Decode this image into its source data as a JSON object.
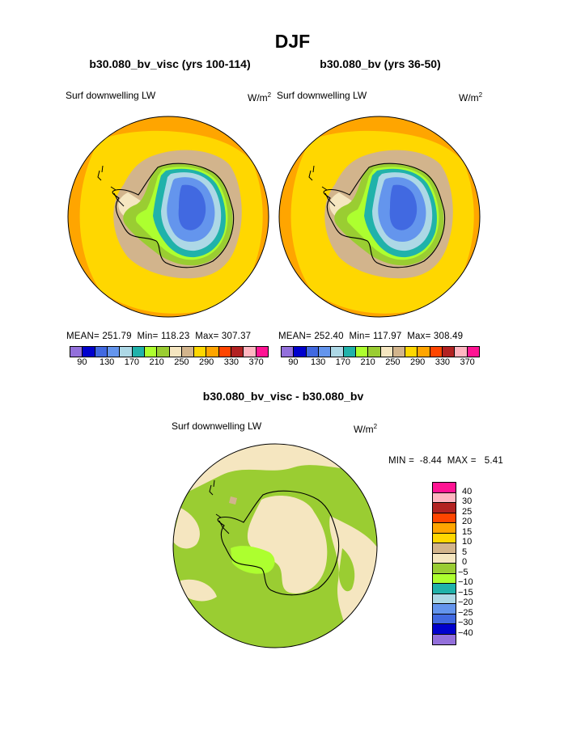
{
  "title": "DJF",
  "panels": [
    {
      "title": "b30.080_bv_visc (yrs 100-114)",
      "field": "Surf downwelling LW",
      "units_base": "W/m",
      "units_sup": "2",
      "stats_text": "MEAN= 251.79  Min= 118.23  Max= 307.37"
    },
    {
      "title": "b30.080_bv (yrs 36-50)",
      "field": "Surf downwelling LW",
      "units_base": "W/m",
      "units_sup": "2",
      "stats_text": "MEAN= 252.40  Min= 117.97  Max= 308.49"
    },
    {
      "title": "b30.080_bv_visc - b30.080_bv",
      "field": "Surf downwelling LW",
      "units_base": "W/m",
      "units_sup": "2",
      "stats_text": "MIN =  -8.44  MAX =   5.41"
    }
  ],
  "colors": {
    "abs_scale": [
      "#9370db",
      "#0000cd",
      "#4169e1",
      "#6495ed",
      "#add8e6",
      "#20b2aa",
      "#adff2f",
      "#9acd32",
      "#f5e6c0",
      "#d2b48c",
      "#ffd700",
      "#ffa500",
      "#ff4500",
      "#b22222",
      "#ffb6c1",
      "#ff1493"
    ],
    "diff_scale": [
      "#9370db",
      "#0000cd",
      "#4169e1",
      "#6495ed",
      "#add8e6",
      "#20b2aa",
      "#adff2f",
      "#9acd32",
      "#f5e6c0",
      "#d2b48c",
      "#ffd700",
      "#ffa500",
      "#ff4500",
      "#b22222",
      "#ffb6c1",
      "#ff1493"
    ]
  },
  "chart_data": [
    {
      "type": "heatmap",
      "projection": "south polar stereographic",
      "title": "b30.080_bv_visc (yrs 100-114)",
      "field": "Surf downwelling LW",
      "units": "W/m2",
      "mean": 251.79,
      "min": 118.23,
      "max": 307.37,
      "contour_levels": [
        90,
        110,
        130,
        150,
        170,
        190,
        210,
        230,
        250,
        270,
        290,
        310,
        330,
        350,
        370
      ],
      "colorbar_tick_labels": [
        "90",
        "130",
        "170",
        "210",
        "250",
        "290",
        "330",
        "370"
      ]
    },
    {
      "type": "heatmap",
      "projection": "south polar stereographic",
      "title": "b30.080_bv (yrs 36-50)",
      "field": "Surf downwelling LW",
      "units": "W/m2",
      "mean": 252.4,
      "min": 117.97,
      "max": 308.49,
      "contour_levels": [
        90,
        110,
        130,
        150,
        170,
        190,
        210,
        230,
        250,
        270,
        290,
        310,
        330,
        350,
        370
      ],
      "colorbar_tick_labels": [
        "90",
        "130",
        "170",
        "210",
        "250",
        "290",
        "330",
        "370"
      ]
    },
    {
      "type": "heatmap",
      "projection": "south polar stereographic",
      "title": "b30.080_bv_visc - b30.080_bv",
      "field": "Surf downwelling LW",
      "units": "W/m2",
      "min": -8.44,
      "max": 5.41,
      "contour_levels": [
        -40,
        -30,
        -25,
        -20,
        -15,
        -10,
        -5,
        0,
        5,
        10,
        15,
        20,
        25,
        30,
        40
      ],
      "colorbar_tick_labels": [
        "40",
        "30",
        "25",
        "20",
        "15",
        "10",
        "5",
        "0",
        "−5",
        "−10",
        "−15",
        "−20",
        "−25",
        "−30",
        "−40"
      ]
    }
  ]
}
